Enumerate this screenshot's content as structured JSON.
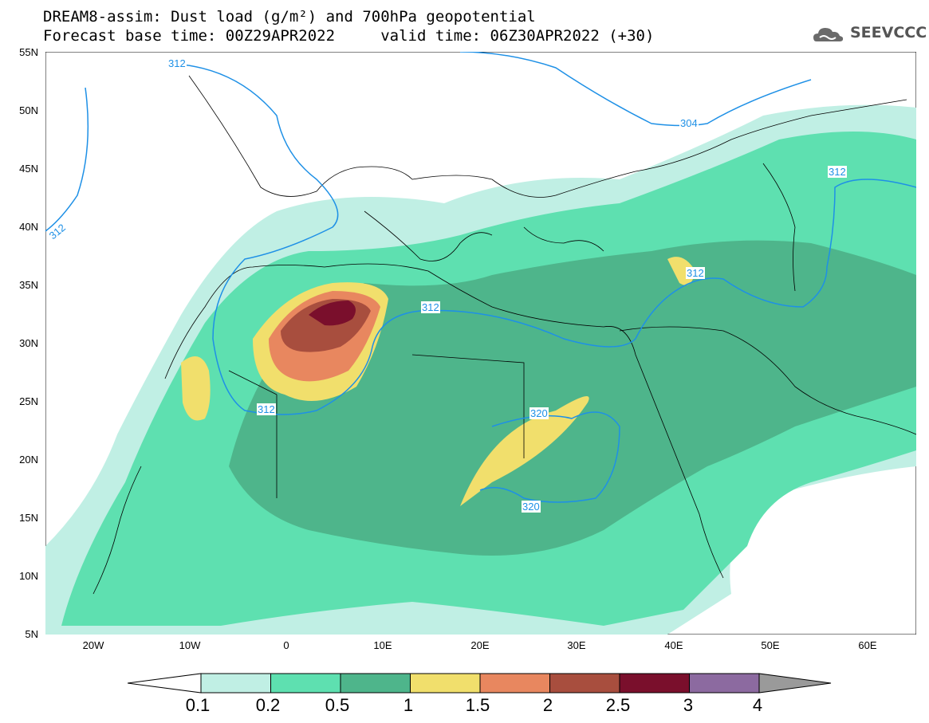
{
  "title": {
    "line1": "DREAM8-assim: Dust load (g/m²) and 700hPa geopotential",
    "line2": "Forecast base time: 00Z29APR2022     valid time: 06Z30APR2022 (+30)"
  },
  "logo": {
    "text": "SEEVCCC",
    "icon": "cloud-icon"
  },
  "axes": {
    "lat_labels": [
      "55N",
      "50N",
      "45N",
      "40N",
      "35N",
      "30N",
      "25N",
      "20N",
      "15N",
      "10N",
      "5N"
    ],
    "lon_labels": [
      "20W",
      "10W",
      "0",
      "10E",
      "20E",
      "30E",
      "40E",
      "50E",
      "60E"
    ],
    "lon_range": [
      -25,
      65
    ],
    "lat_range": [
      5,
      55
    ]
  },
  "contour_labels": [
    "312",
    "312",
    "304",
    "312",
    "312",
    "312",
    "312",
    "320",
    "320"
  ],
  "colorbar": {
    "labels": [
      "0.1",
      "0.2",
      "0.5",
      "1",
      "1.5",
      "2",
      "2.5",
      "3",
      "4"
    ],
    "colors": [
      "#c0efe4",
      "#5ee0b0",
      "#4eb58b",
      "#f1df6c",
      "#e8875f",
      "#a84e3e",
      "#7a0f2c",
      "#8c6aa0",
      "#9a9a9a"
    ]
  },
  "colors": {
    "land_outline": "#000000",
    "contour": "#1e90e6",
    "dust_light": "#c0efe4",
    "dust_low": "#5ee0b0",
    "dust_mid": "#4eb58b",
    "dust_yellow": "#f1df6c",
    "dust_orange": "#e8875f",
    "dust_brown": "#a84e3e",
    "dust_max": "#7a0f2c"
  }
}
